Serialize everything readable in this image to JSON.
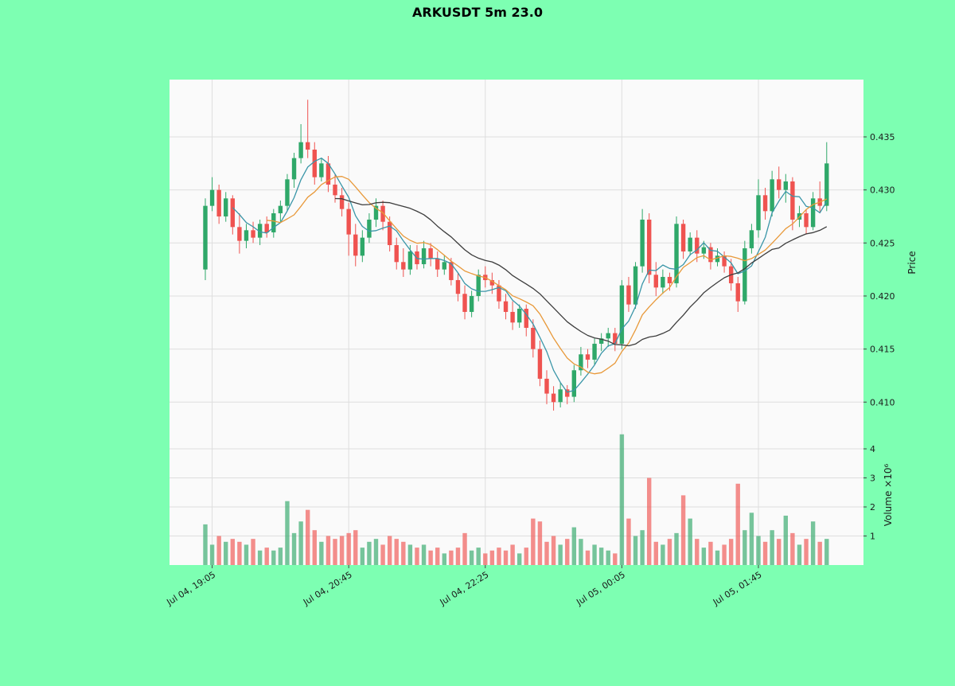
{
  "title": "ARKUSDT 5m 23.0",
  "colors": {
    "background": "#7dffb2",
    "panel": "#fafafa",
    "grid": "#dedede",
    "up": "#2fa869",
    "down": "#ef5350",
    "text": "#1b1b1b"
  },
  "axes": {
    "price_label": "Price",
    "volume_label": "Volume ×10⁶",
    "price_ticks": [
      "0.435",
      "0.430",
      "0.425",
      "0.420",
      "0.415",
      "0.410"
    ],
    "volume_ticks": [
      1,
      2,
      3,
      4
    ],
    "x_ticks": [
      {
        "index": 1,
        "label": "Jul 04, 19:05"
      },
      {
        "index": 21,
        "label": "Jul 04, 20:45"
      },
      {
        "index": 41,
        "label": "Jul 04, 22:25"
      },
      {
        "index": 61,
        "label": "Jul 05, 00:05"
      },
      {
        "index": 81,
        "label": "Jul 05, 01:45"
      }
    ]
  },
  "chart_data": {
    "type": "candlestick",
    "symbol": "ARKUSDT",
    "interval": "5m",
    "start_time": "Jul 04, 19:00",
    "step_minutes": 5,
    "ylim_price": [
      0.408,
      0.4385
    ],
    "ylim_volume": [
      0,
      4.8
    ],
    "volume_unit": 1000000,
    "moving_averages": {
      "windows": [
        5,
        10,
        20
      ],
      "colors": [
        "#3a96a8",
        "#e8993a",
        "#3d3d3d"
      ]
    },
    "ohlcv_columns": [
      "open",
      "high",
      "low",
      "close",
      "volume_millions"
    ],
    "ohlcv": [
      [
        0.4225,
        0.4292,
        0.4215,
        0.4285,
        1.4
      ],
      [
        0.4285,
        0.4312,
        0.428,
        0.43,
        0.7
      ],
      [
        0.43,
        0.4305,
        0.4268,
        0.4275,
        1.0
      ],
      [
        0.4275,
        0.4298,
        0.427,
        0.4292,
        0.8
      ],
      [
        0.4292,
        0.4295,
        0.4258,
        0.4265,
        0.9
      ],
      [
        0.4265,
        0.4278,
        0.424,
        0.4252,
        0.8
      ],
      [
        0.4252,
        0.4268,
        0.4245,
        0.4262,
        0.7
      ],
      [
        0.4262,
        0.427,
        0.425,
        0.4255,
        0.9
      ],
      [
        0.4255,
        0.4272,
        0.4248,
        0.4268,
        0.5
      ],
      [
        0.4268,
        0.4275,
        0.4255,
        0.426,
        0.6
      ],
      [
        0.426,
        0.4282,
        0.4255,
        0.4278,
        0.5
      ],
      [
        0.4278,
        0.429,
        0.427,
        0.4285,
        0.6
      ],
      [
        0.4285,
        0.4315,
        0.428,
        0.431,
        2.2
      ],
      [
        0.431,
        0.4335,
        0.4302,
        0.433,
        1.1
      ],
      [
        0.433,
        0.4362,
        0.4325,
        0.4345,
        1.5
      ],
      [
        0.4345,
        0.4385,
        0.433,
        0.4338,
        1.9
      ],
      [
        0.4338,
        0.4345,
        0.4305,
        0.4312,
        1.2
      ],
      [
        0.4312,
        0.433,
        0.4308,
        0.4325,
        0.8
      ],
      [
        0.4325,
        0.4332,
        0.4298,
        0.4305,
        1.0
      ],
      [
        0.4305,
        0.4315,
        0.4288,
        0.4295,
        0.9
      ],
      [
        0.4295,
        0.4302,
        0.4275,
        0.4282,
        1.0
      ],
      [
        0.4282,
        0.4288,
        0.4238,
        0.4258,
        1.1
      ],
      [
        0.4258,
        0.4268,
        0.4228,
        0.4238,
        1.2
      ],
      [
        0.4238,
        0.4262,
        0.4232,
        0.4255,
        0.6
      ],
      [
        0.4255,
        0.4278,
        0.425,
        0.4272,
        0.8
      ],
      [
        0.4272,
        0.4292,
        0.4265,
        0.4285,
        0.9
      ],
      [
        0.4285,
        0.429,
        0.4262,
        0.427,
        0.7
      ],
      [
        0.427,
        0.4275,
        0.4242,
        0.4248,
        1.0
      ],
      [
        0.4248,
        0.4255,
        0.4225,
        0.4232,
        0.9
      ],
      [
        0.4232,
        0.4245,
        0.4218,
        0.4225,
        0.8
      ],
      [
        0.4225,
        0.4248,
        0.422,
        0.4242,
        0.7
      ],
      [
        0.4242,
        0.4248,
        0.4225,
        0.423,
        0.6
      ],
      [
        0.423,
        0.4252,
        0.4226,
        0.4245,
        0.7
      ],
      [
        0.4245,
        0.425,
        0.4228,
        0.4235,
        0.5
      ],
      [
        0.4235,
        0.4242,
        0.4218,
        0.4225,
        0.6
      ],
      [
        0.4225,
        0.4238,
        0.422,
        0.4232,
        0.4
      ],
      [
        0.4232,
        0.4236,
        0.421,
        0.4215,
        0.5
      ],
      [
        0.4215,
        0.4222,
        0.4195,
        0.4202,
        0.6
      ],
      [
        0.4202,
        0.421,
        0.4178,
        0.4185,
        1.1
      ],
      [
        0.4185,
        0.4205,
        0.418,
        0.42,
        0.5
      ],
      [
        0.42,
        0.4225,
        0.4195,
        0.422,
        0.6
      ],
      [
        0.422,
        0.4228,
        0.4208,
        0.4215,
        0.4
      ],
      [
        0.4215,
        0.4222,
        0.4202,
        0.421,
        0.5
      ],
      [
        0.421,
        0.4215,
        0.4188,
        0.4195,
        0.6
      ],
      [
        0.4195,
        0.4202,
        0.4178,
        0.4185,
        0.5
      ],
      [
        0.4185,
        0.4195,
        0.4168,
        0.4175,
        0.7
      ],
      [
        0.4175,
        0.4192,
        0.417,
        0.4188,
        0.4
      ],
      [
        0.4188,
        0.4192,
        0.4162,
        0.417,
        0.6
      ],
      [
        0.417,
        0.4178,
        0.4142,
        0.415,
        1.6
      ],
      [
        0.415,
        0.4158,
        0.4115,
        0.4122,
        1.5
      ],
      [
        0.4122,
        0.413,
        0.4098,
        0.4108,
        0.8
      ],
      [
        0.4108,
        0.4115,
        0.4092,
        0.41,
        1.0
      ],
      [
        0.41,
        0.4118,
        0.4095,
        0.4112,
        0.7
      ],
      [
        0.4112,
        0.4116,
        0.4098,
        0.4105,
        0.9
      ],
      [
        0.4105,
        0.4135,
        0.41,
        0.413,
        1.3
      ],
      [
        0.413,
        0.4152,
        0.4125,
        0.4145,
        0.9
      ],
      [
        0.4145,
        0.415,
        0.4132,
        0.414,
        0.5
      ],
      [
        0.414,
        0.416,
        0.4135,
        0.4155,
        0.7
      ],
      [
        0.4155,
        0.4165,
        0.4148,
        0.416,
        0.6
      ],
      [
        0.416,
        0.417,
        0.4152,
        0.4165,
        0.5
      ],
      [
        0.4165,
        0.417,
        0.4148,
        0.4155,
        0.4
      ],
      [
        0.4155,
        0.4215,
        0.415,
        0.421,
        4.5
      ],
      [
        0.421,
        0.4218,
        0.4185,
        0.4192,
        1.6
      ],
      [
        0.4192,
        0.4232,
        0.4188,
        0.4228,
        1.0
      ],
      [
        0.4228,
        0.4282,
        0.4222,
        0.4272,
        1.2
      ],
      [
        0.4272,
        0.4278,
        0.4212,
        0.422,
        3.0
      ],
      [
        0.422,
        0.4232,
        0.42,
        0.4208,
        0.8
      ],
      [
        0.4208,
        0.4225,
        0.4202,
        0.4218,
        0.7
      ],
      [
        0.4218,
        0.4222,
        0.4205,
        0.4212,
        0.9
      ],
      [
        0.4212,
        0.4275,
        0.4208,
        0.4268,
        1.1
      ],
      [
        0.4268,
        0.4272,
        0.4235,
        0.4242,
        2.4
      ],
      [
        0.4242,
        0.426,
        0.4238,
        0.4255,
        1.6
      ],
      [
        0.4255,
        0.4262,
        0.4232,
        0.424,
        0.9
      ],
      [
        0.424,
        0.4252,
        0.4235,
        0.4246,
        0.6
      ],
      [
        0.4246,
        0.425,
        0.4225,
        0.4232,
        0.8
      ],
      [
        0.4232,
        0.4245,
        0.4228,
        0.4238,
        0.5
      ],
      [
        0.4238,
        0.4242,
        0.4222,
        0.4228,
        0.7
      ],
      [
        0.4228,
        0.4235,
        0.4205,
        0.4212,
        0.9
      ],
      [
        0.4212,
        0.4218,
        0.4185,
        0.4195,
        2.8
      ],
      [
        0.4195,
        0.4252,
        0.4192,
        0.4245,
        1.2
      ],
      [
        0.4245,
        0.4268,
        0.424,
        0.4262,
        1.8
      ],
      [
        0.4262,
        0.431,
        0.4255,
        0.4295,
        1.0
      ],
      [
        0.4295,
        0.4302,
        0.4272,
        0.428,
        0.8
      ],
      [
        0.428,
        0.4318,
        0.4275,
        0.431,
        1.2
      ],
      [
        0.431,
        0.4322,
        0.4292,
        0.43,
        0.9
      ],
      [
        0.43,
        0.4315,
        0.4288,
        0.4308,
        1.7
      ],
      [
        0.4308,
        0.4312,
        0.4262,
        0.4272,
        1.1
      ],
      [
        0.4272,
        0.4285,
        0.4265,
        0.4278,
        0.7
      ],
      [
        0.4278,
        0.4282,
        0.4258,
        0.4265,
        0.9
      ],
      [
        0.4265,
        0.4298,
        0.4262,
        0.4292,
        1.5
      ],
      [
        0.4292,
        0.4308,
        0.4278,
        0.4285,
        0.8
      ],
      [
        0.4285,
        0.4345,
        0.428,
        0.4325,
        0.9
      ]
    ]
  }
}
